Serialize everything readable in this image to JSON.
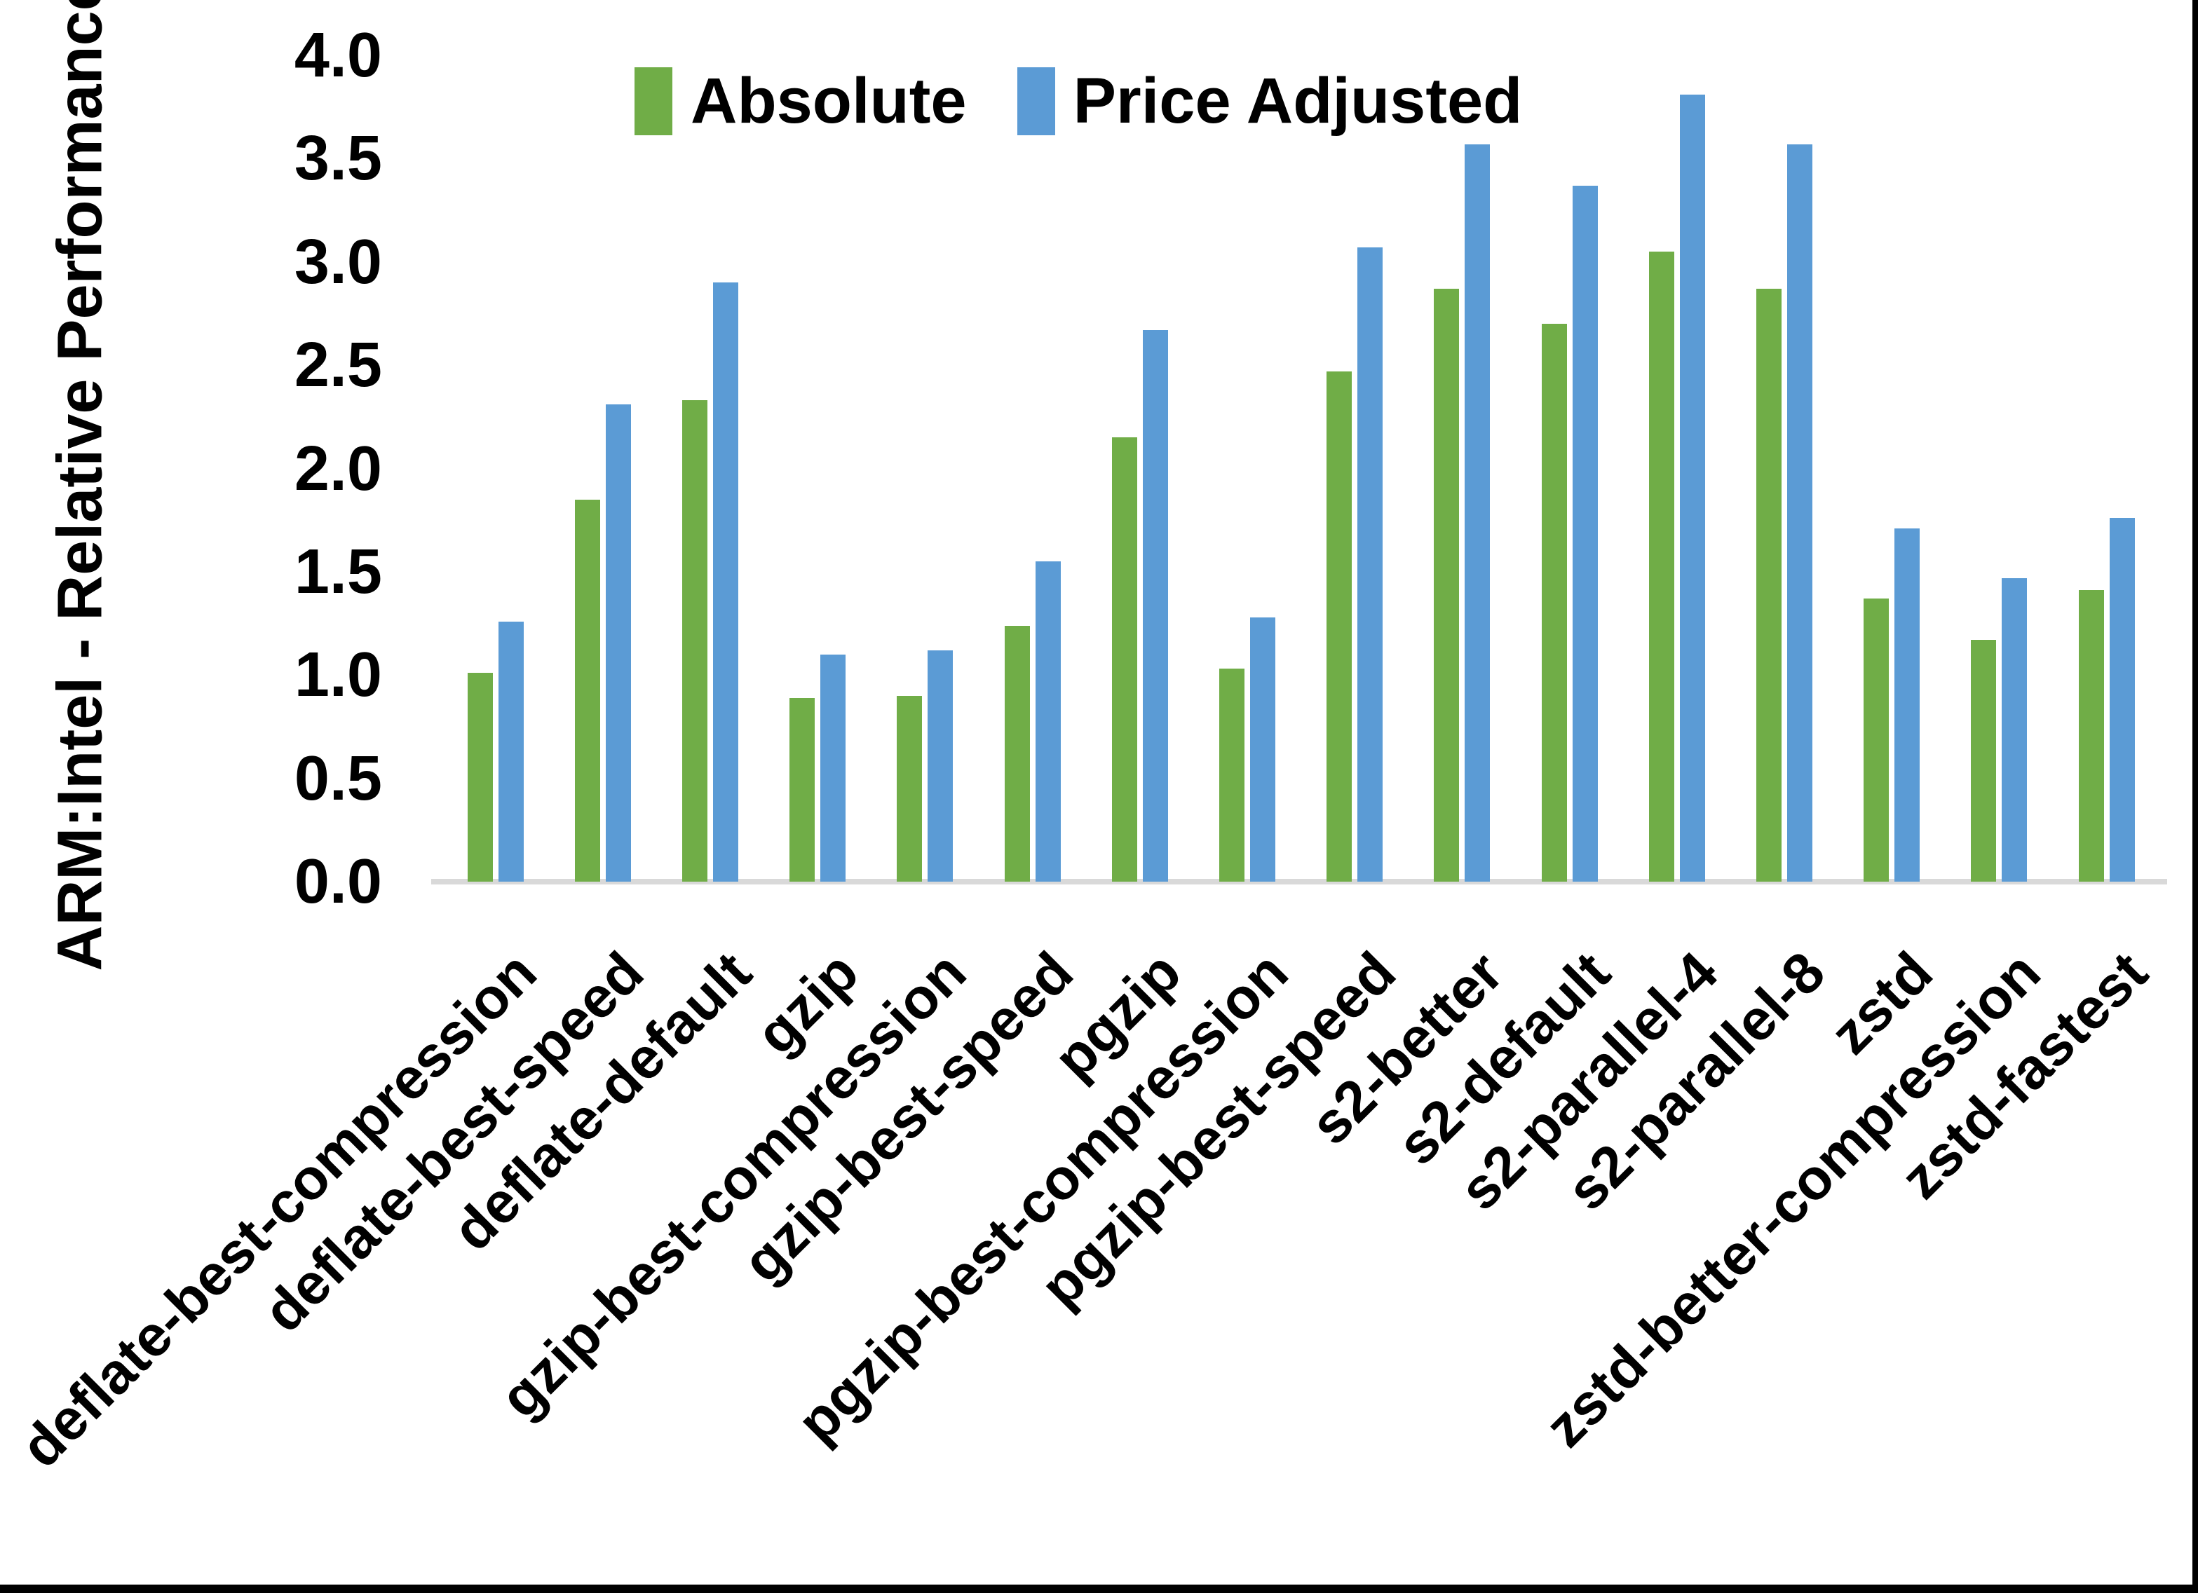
{
  "chart_data": {
    "type": "bar",
    "title": "",
    "xlabel": "",
    "ylabel": "ARM:Intel - Relative Performance",
    "ylim": [
      0.0,
      4.0
    ],
    "ytick_step": 0.5,
    "ytick_format_decimals": 1,
    "grid": false,
    "legend_position": "top-center",
    "x_label_rotation_deg": 45,
    "axis_line_color": "#d9d9d9",
    "background_color": "#ffffff",
    "frame_color": "#000000",
    "categories": [
      "deflate-best-compression",
      "deflate-best-speed",
      "deflate-default",
      "gzip",
      "gzip-best-compression",
      "gzip-best-speed",
      "pgzip",
      "pgzip-best-compression",
      "pgzip-best-speed",
      "s2-better",
      "s2-default",
      "s2-parallel-4",
      "s2-parallel-8",
      "zstd",
      "zstd-better-compression",
      "zstd-fastest"
    ],
    "series": [
      {
        "name": "Absolute",
        "color": "#70AD47",
        "values": [
          1.01,
          1.85,
          2.33,
          0.89,
          0.9,
          1.24,
          2.15,
          1.03,
          2.47,
          2.87,
          2.7,
          3.05,
          2.87,
          1.37,
          1.17,
          1.41
        ]
      },
      {
        "name": "Price Adjusted",
        "color": "#5B9BD5",
        "values": [
          1.26,
          2.31,
          2.9,
          1.1,
          1.12,
          1.55,
          2.67,
          1.28,
          3.07,
          3.57,
          3.37,
          3.81,
          3.57,
          1.71,
          1.47,
          1.76
        ]
      }
    ]
  }
}
